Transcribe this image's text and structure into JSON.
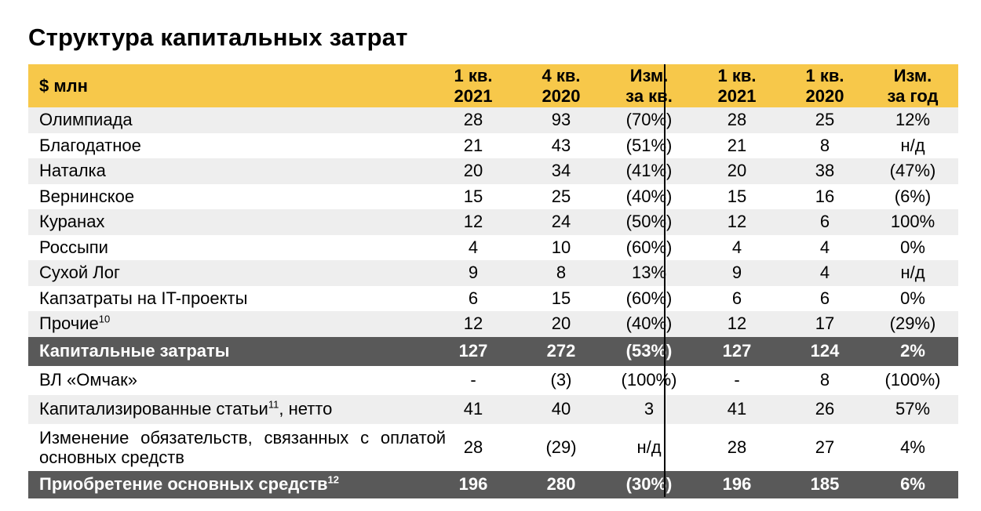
{
  "title": "Структура капитальных затрат",
  "header": {
    "label": "$ млн",
    "cols": [
      [
        "1 кв.",
        "2021"
      ],
      [
        "4 кв.",
        "2020"
      ],
      [
        "Изм.",
        "за кв."
      ],
      [
        "1 кв.",
        "2021"
      ],
      [
        "1 кв.",
        "2020"
      ],
      [
        "Изм.",
        "за год"
      ]
    ]
  },
  "rows": [
    {
      "label": "Олимпиада",
      "sup": "",
      "values": [
        "28",
        "93",
        "(70%)",
        "28",
        "25",
        "12%"
      ]
    },
    {
      "label": "Благодатное",
      "sup": "",
      "values": [
        "21",
        "43",
        "(51%)",
        "21",
        "8",
        "н/д"
      ]
    },
    {
      "label": "Наталка",
      "sup": "",
      "values": [
        "20",
        "34",
        "(41%)",
        "20",
        "38",
        "(47%)"
      ]
    },
    {
      "label": "Вернинское",
      "sup": "",
      "values": [
        "15",
        "25",
        "(40%)",
        "15",
        "16",
        "(6%)"
      ]
    },
    {
      "label": "Куранах",
      "sup": "",
      "values": [
        "12",
        "24",
        "(50%)",
        "12",
        "6",
        "100%"
      ]
    },
    {
      "label": "Россыпи",
      "sup": "",
      "values": [
        "4",
        "10",
        "(60%)",
        "4",
        "4",
        "0%"
      ]
    },
    {
      "label": "Сухой Лог",
      "sup": "",
      "values": [
        "9",
        "8",
        "13%",
        "9",
        "4",
        "н/д"
      ]
    },
    {
      "label": "Капзатраты на IT-проекты",
      "sup": "",
      "values": [
        "6",
        "15",
        "(60%)",
        "6",
        "6",
        "0%"
      ]
    },
    {
      "label": "Прочие",
      "sup": "10",
      "values": [
        "12",
        "20",
        "(40%)",
        "12",
        "17",
        "(29%)"
      ]
    }
  ],
  "capex_total": {
    "label": "Капитальные затраты",
    "values": [
      "127",
      "272",
      "(53%)",
      "127",
      "124",
      "2%"
    ]
  },
  "rows2": [
    {
      "label": "ВЛ «Омчак»",
      "sup": "",
      "suffix": "",
      "values": [
        "-",
        "(3)",
        "(100%)",
        "-",
        "8",
        "(100%)"
      ]
    },
    {
      "label": "Капитализированные статьи",
      "sup": "11",
      "suffix": ", нетто",
      "values": [
        "41",
        "40",
        "3",
        "41",
        "26",
        "57%"
      ]
    },
    {
      "label": "Изменение обязательств, связанных с оплатой основных средств",
      "sup": "",
      "suffix": "",
      "values": [
        "28",
        "(29)",
        "н/д",
        "28",
        "27",
        "4%"
      ]
    }
  ],
  "grand_total": {
    "label": "Приобретение основных средств",
    "sup": "12",
    "values": [
      "196",
      "280",
      "(30%)",
      "196",
      "185",
      "6%"
    ]
  }
}
